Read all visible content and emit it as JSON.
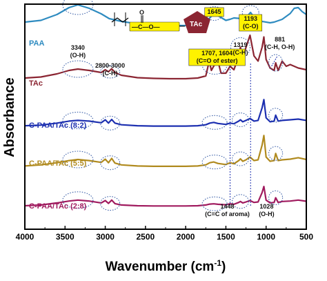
{
  "chart_data": {
    "type": "line",
    "title": "",
    "xlabel": "Wavenumber (cm",
    "xlabel_superscript": "-1",
    "xlabel_close": ")",
    "ylabel": "Absorbance",
    "xlim": [
      4000,
      500
    ],
    "x_reversed": true,
    "x_ticks": [
      4000,
      3500,
      3000,
      2500,
      2000,
      1500,
      1000,
      500
    ],
    "x_tick_labels": [
      "4000",
      "3500",
      "3000",
      "2500",
      "2000",
      "1500",
      "1000",
      "500"
    ],
    "y_ticks_shown": false,
    "grid": false,
    "legend": "inline-labels-left",
    "inset_structure": {
      "fragment_label": "O",
      "bond_text": "—C—O—",
      "group_label": "TAc"
    },
    "series": [
      {
        "name": "PAA",
        "color": "#2e8bc0",
        "offset": 4,
        "x": [
          4000,
          3800,
          3600,
          3450,
          3340,
          3200,
          3050,
          2950,
          2800,
          2600,
          2400,
          2200,
          2000,
          1850,
          1750,
          1700,
          1645,
          1580,
          1500,
          1450,
          1400,
          1300,
          1250,
          1193,
          1150,
          1050,
          950,
          900,
          850,
          800,
          700,
          650,
          600,
          550,
          500
        ],
        "values": [
          0.2,
          0.25,
          0.42,
          0.62,
          0.7,
          0.6,
          0.44,
          0.3,
          0.22,
          0.15,
          0.12,
          0.1,
          0.1,
          0.11,
          0.18,
          0.32,
          0.45,
          0.36,
          0.25,
          0.28,
          0.32,
          0.3,
          0.33,
          0.48,
          0.34,
          0.22,
          0.18,
          0.2,
          0.24,
          0.28,
          0.45,
          0.6,
          0.62,
          0.5,
          0.42
        ]
      },
      {
        "name": "TAc",
        "color": "#8b2532",
        "offset": 3,
        "x": [
          4000,
          3800,
          3600,
          3450,
          3340,
          3200,
          3050,
          3000,
          2960,
          2920,
          2880,
          2800,
          2600,
          2400,
          2200,
          2000,
          1850,
          1750,
          1707,
          1680,
          1640,
          1604,
          1560,
          1500,
          1448,
          1400,
          1340,
          1319,
          1290,
          1250,
          1200,
          1150,
          1100,
          1050,
          1028,
          1000,
          950,
          900,
          881,
          850,
          800,
          750,
          700,
          600,
          500
        ],
        "values": [
          0.06,
          0.09,
          0.18,
          0.28,
          0.32,
          0.28,
          0.22,
          0.3,
          0.24,
          0.33,
          0.22,
          0.14,
          0.07,
          0.05,
          0.04,
          0.04,
          0.06,
          0.12,
          0.55,
          0.28,
          0.45,
          0.6,
          0.2,
          0.2,
          0.4,
          0.3,
          0.7,
          0.95,
          0.65,
          0.95,
          1.3,
          0.7,
          0.55,
          0.95,
          1.25,
          0.6,
          0.35,
          0.28,
          0.5,
          0.28,
          0.55,
          0.4,
          0.45,
          0.35,
          0.3
        ]
      },
      {
        "name": "C-PAA/TAc (8:2)",
        "color": "#1c2fb0",
        "offset": 2,
        "x": [
          4000,
          3800,
          3600,
          3450,
          3340,
          3200,
          3050,
          3000,
          2960,
          2920,
          2880,
          2800,
          2600,
          2400,
          2200,
          2000,
          1850,
          1750,
          1700,
          1650,
          1600,
          1500,
          1448,
          1400,
          1340,
          1319,
          1290,
          1250,
          1200,
          1150,
          1100,
          1050,
          1028,
          1000,
          950,
          900,
          881,
          850,
          800,
          700,
          600,
          500
        ],
        "values": [
          0.06,
          0.08,
          0.14,
          0.2,
          0.22,
          0.2,
          0.15,
          0.24,
          0.14,
          0.25,
          0.14,
          0.09,
          0.06,
          0.05,
          0.05,
          0.05,
          0.06,
          0.09,
          0.14,
          0.16,
          0.13,
          0.1,
          0.14,
          0.12,
          0.2,
          0.24,
          0.18,
          0.22,
          0.28,
          0.2,
          0.22,
          0.6,
          0.85,
          0.3,
          0.18,
          0.2,
          0.38,
          0.2,
          0.22,
          0.24,
          0.26,
          0.22
        ]
      },
      {
        "name": "C-PAA/TAc (5:5)",
        "color": "#b08a1e",
        "offset": 1,
        "x": [
          4000,
          3800,
          3600,
          3450,
          3340,
          3200,
          3050,
          3000,
          2960,
          2920,
          2880,
          2800,
          2600,
          2400,
          2200,
          2000,
          1850,
          1750,
          1700,
          1650,
          1600,
          1500,
          1448,
          1400,
          1340,
          1319,
          1290,
          1250,
          1200,
          1150,
          1100,
          1050,
          1028,
          1000,
          950,
          900,
          881,
          850,
          800,
          700,
          600,
          500
        ],
        "values": [
          0.07,
          0.1,
          0.16,
          0.22,
          0.25,
          0.22,
          0.17,
          0.26,
          0.16,
          0.28,
          0.15,
          0.1,
          0.07,
          0.06,
          0.06,
          0.06,
          0.07,
          0.1,
          0.16,
          0.18,
          0.14,
          0.11,
          0.16,
          0.13,
          0.22,
          0.27,
          0.2,
          0.24,
          0.32,
          0.22,
          0.24,
          0.65,
          0.92,
          0.32,
          0.2,
          0.22,
          0.42,
          0.22,
          0.24,
          0.26,
          0.3,
          0.25
        ]
      },
      {
        "name": "C-PAA/TAc (2:8)",
        "color": "#a01a5e",
        "offset": 0,
        "x": [
          4000,
          3800,
          3600,
          3450,
          3340,
          3200,
          3050,
          3000,
          2960,
          2920,
          2880,
          2800,
          2600,
          2400,
          2200,
          2000,
          1850,
          1750,
          1700,
          1650,
          1600,
          1500,
          1448,
          1400,
          1340,
          1319,
          1290,
          1250,
          1200,
          1150,
          1100,
          1050,
          1028,
          1000,
          950,
          900,
          881,
          850,
          800,
          700,
          600,
          500
        ],
        "values": [
          0.06,
          0.09,
          0.18,
          0.26,
          0.3,
          0.26,
          0.18,
          0.28,
          0.16,
          0.3,
          0.15,
          0.09,
          0.06,
          0.05,
          0.05,
          0.05,
          0.06,
          0.09,
          0.13,
          0.14,
          0.12,
          0.1,
          0.14,
          0.12,
          0.2,
          0.24,
          0.18,
          0.22,
          0.28,
          0.2,
          0.22,
          0.62,
          0.88,
          0.3,
          0.18,
          0.2,
          0.4,
          0.2,
          0.24,
          0.26,
          0.3,
          0.25
        ]
      }
    ],
    "annotations": [
      {
        "lines": [
          "3340",
          "(O-H)"
        ],
        "x": 3340,
        "highlight": false
      },
      {
        "lines": [
          "2800-3000",
          "(C-H)"
        ],
        "x": 2940,
        "highlight": false
      },
      {
        "lines": [
          "1645"
        ],
        "x": 1645,
        "highlight": true
      },
      {
        "lines": [
          "1707, 1604",
          "(C=O of ester)"
        ],
        "x": 1610,
        "highlight": true
      },
      {
        "lines": [
          "1319",
          "(C-H)"
        ],
        "x": 1319,
        "highlight": false
      },
      {
        "lines": [
          "1193",
          "(C-O)"
        ],
        "x": 1193,
        "highlight": true
      },
      {
        "lines": [
          "881",
          "(C-H, O-H)"
        ],
        "x": 881,
        "highlight": false
      },
      {
        "lines": [
          "1448",
          "(C=C of aroma)"
        ],
        "x": 1448,
        "highlight": false
      },
      {
        "lines": [
          "1028",
          "(O-H)"
        ],
        "x": 1028,
        "highlight": false
      }
    ],
    "dotted_reference_lines": [
      1448,
      1193
    ]
  }
}
